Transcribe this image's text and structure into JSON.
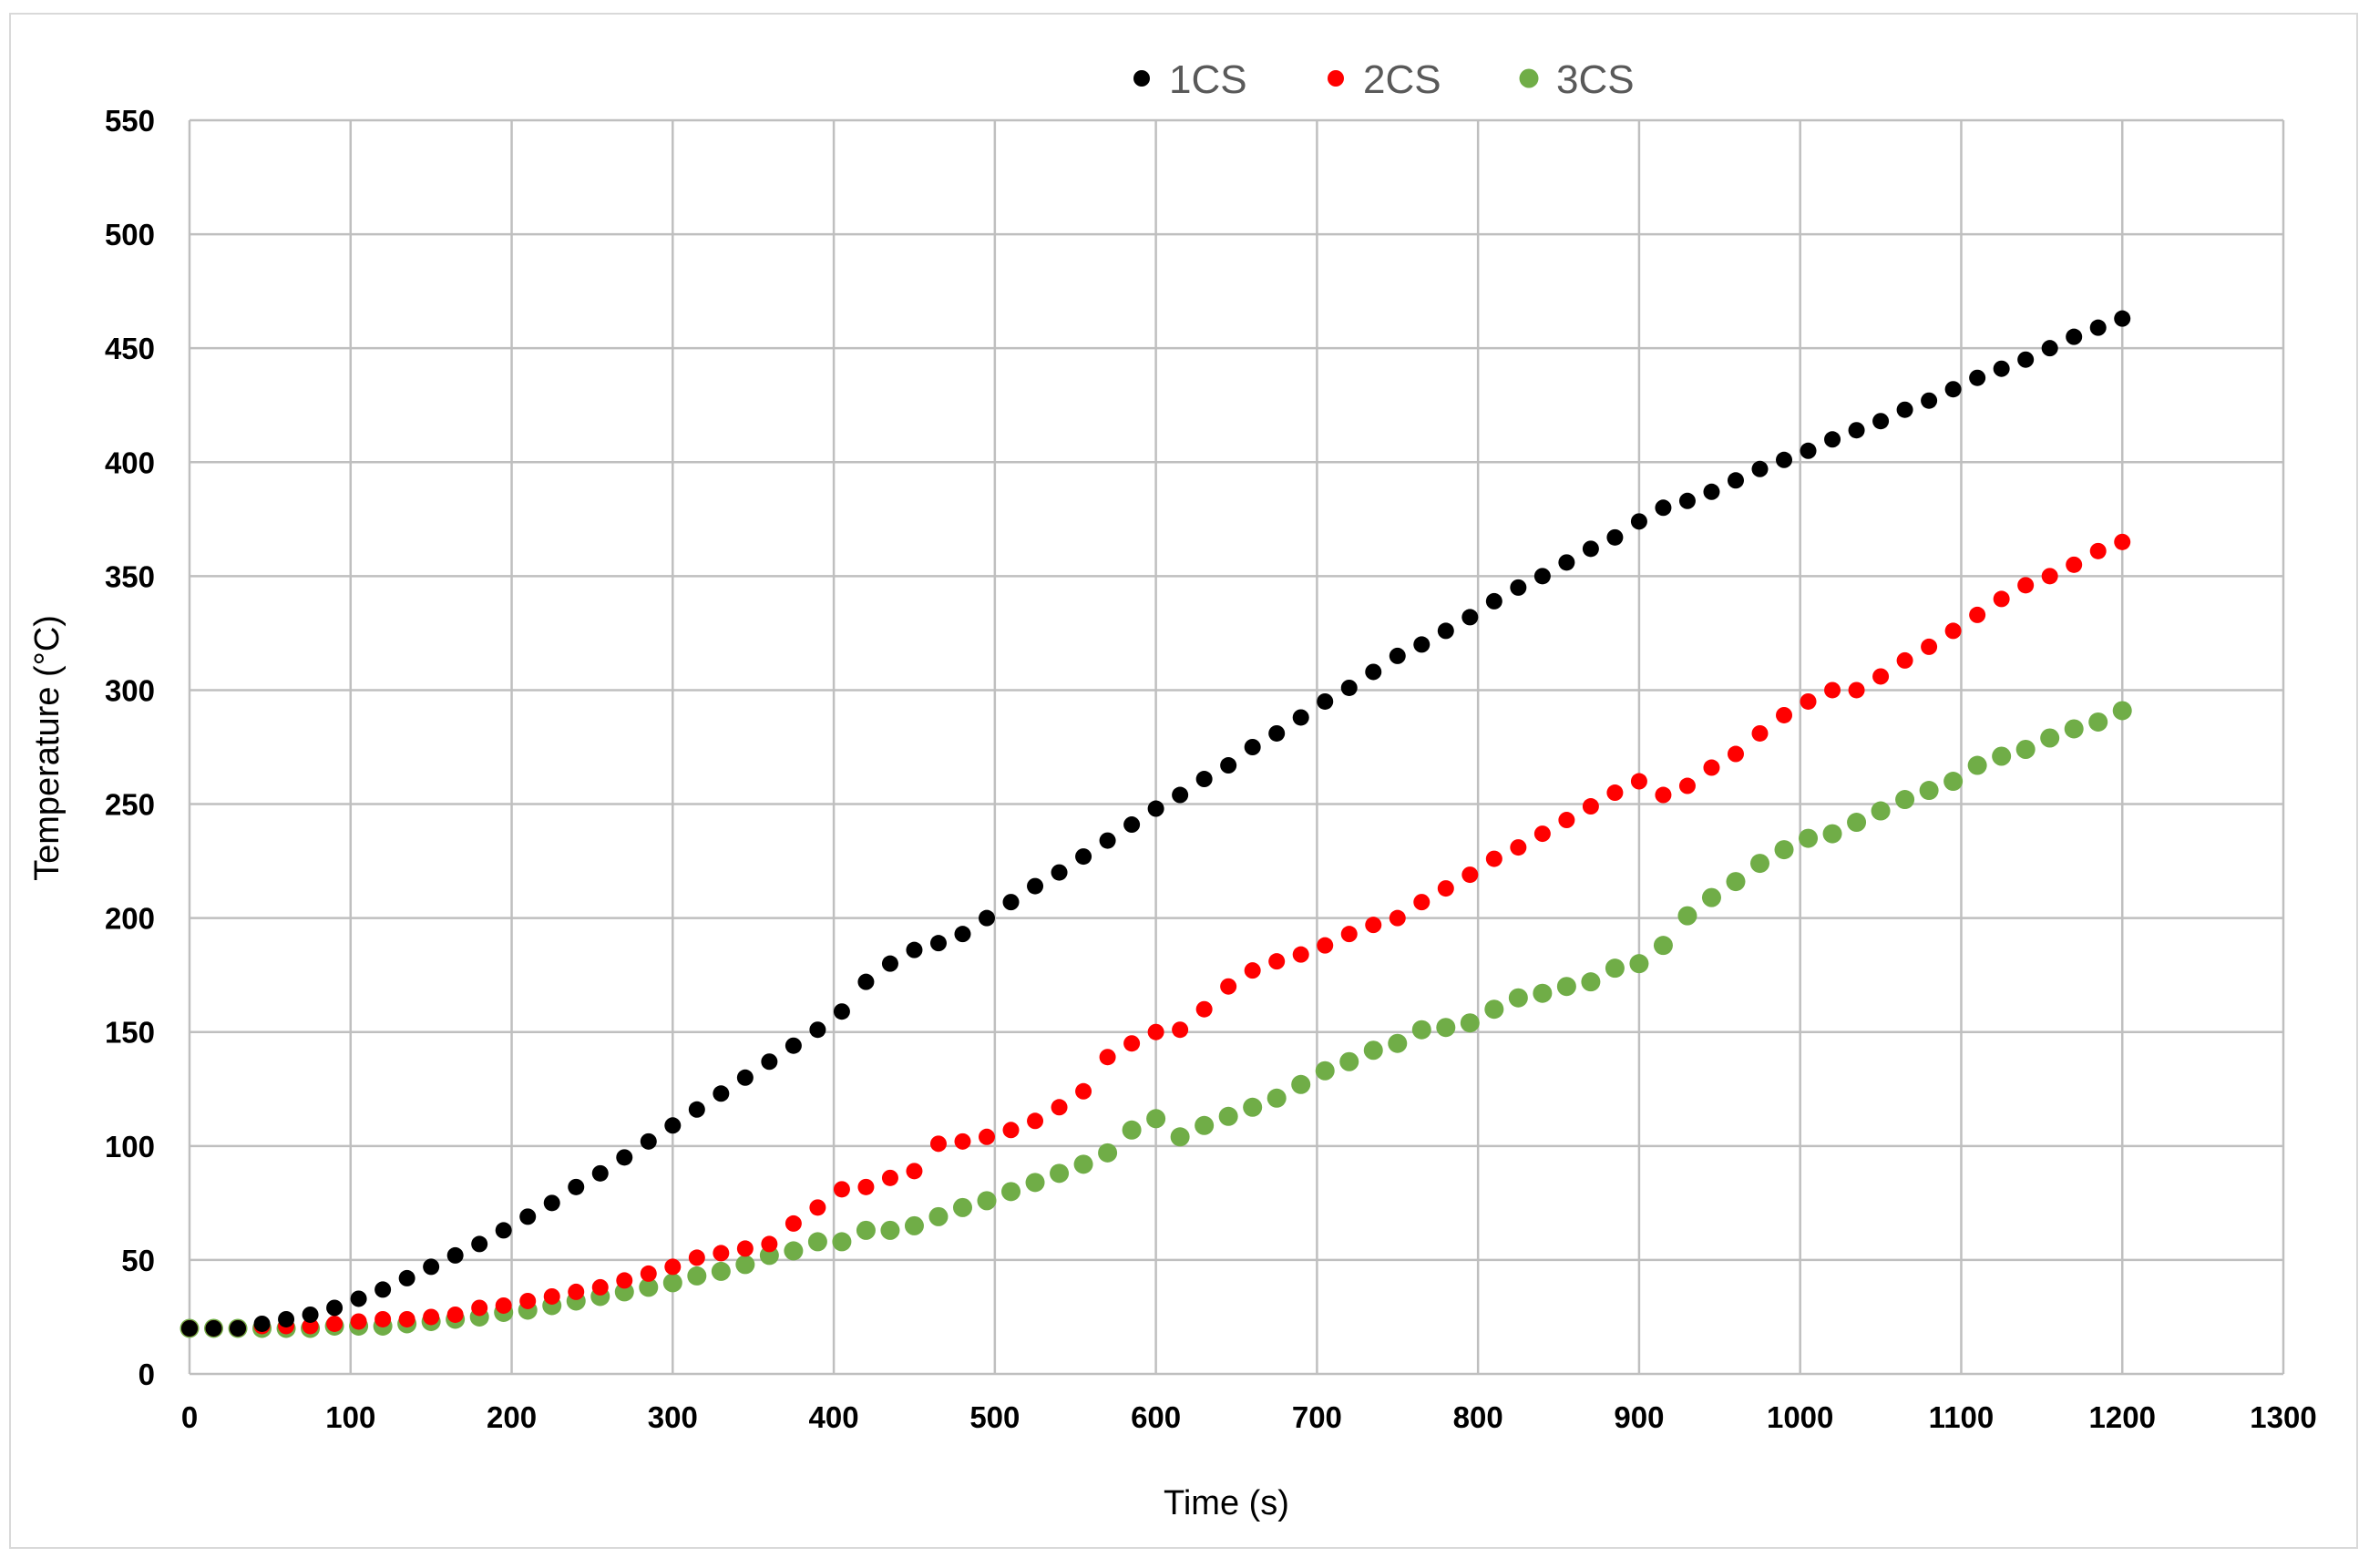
{
  "chart_data": {
    "type": "scatter",
    "title": "",
    "xlabel": "Time (s)",
    "ylabel": "Temperature (°C)",
    "xlim": [
      0,
      1300
    ],
    "ylim": [
      0,
      550
    ],
    "x_ticks": [
      "0",
      "100",
      "200",
      "300",
      "400",
      "500",
      "600",
      "700",
      "800",
      "900",
      "1000",
      "1100",
      "1200",
      "1300"
    ],
    "y_ticks": [
      "0",
      "50",
      "100",
      "150",
      "200",
      "250",
      "300",
      "350",
      "400",
      "450",
      "500",
      "550"
    ],
    "grid": true,
    "legend_position": "top",
    "series": [
      {
        "name": "1CS",
        "color": "#000000",
        "x": [
          0,
          15,
          30,
          45,
          60,
          75,
          90,
          105,
          120,
          135,
          150,
          165,
          180,
          195,
          210,
          225,
          240,
          255,
          270,
          285,
          300,
          315,
          330,
          345,
          360,
          375,
          390,
          405,
          420,
          435,
          450,
          465,
          480,
          495,
          510,
          525,
          540,
          555,
          570,
          585,
          600,
          615,
          630,
          645,
          660,
          675,
          690,
          705,
          720,
          735,
          750,
          765,
          780,
          795,
          810,
          825,
          840,
          855,
          870,
          885,
          900,
          915,
          930,
          945,
          960,
          975,
          990,
          1005,
          1020,
          1035,
          1050,
          1065,
          1080,
          1095,
          1110,
          1125,
          1140,
          1155,
          1170,
          1185,
          1200
        ],
        "y": [
          20,
          20,
          20,
          22,
          24,
          26,
          29,
          33,
          37,
          42,
          47,
          52,
          57,
          63,
          69,
          75,
          82,
          88,
          95,
          102,
          109,
          116,
          123,
          130,
          137,
          144,
          151,
          159,
          172,
          180,
          186,
          189,
          193,
          200,
          207,
          214,
          220,
          227,
          234,
          241,
          248,
          254,
          261,
          267,
          275,
          281,
          288,
          295,
          301,
          308,
          315,
          320,
          326,
          332,
          339,
          345,
          350,
          356,
          362,
          367,
          374,
          380,
          383,
          387,
          392,
          397,
          401,
          405,
          410,
          414,
          418,
          423,
          427,
          432,
          437,
          441,
          445,
          450,
          455,
          459,
          463
        ]
      },
      {
        "name": "2CS",
        "color": "#ff0000",
        "x": [
          0,
          15,
          30,
          45,
          60,
          75,
          90,
          105,
          120,
          135,
          150,
          165,
          180,
          195,
          210,
          225,
          240,
          255,
          270,
          285,
          300,
          315,
          330,
          345,
          360,
          375,
          390,
          405,
          420,
          435,
          450,
          465,
          480,
          495,
          510,
          525,
          540,
          555,
          570,
          585,
          600,
          615,
          630,
          645,
          660,
          675,
          690,
          705,
          720,
          735,
          750,
          765,
          780,
          795,
          810,
          825,
          840,
          855,
          870,
          885,
          900,
          915,
          930,
          945,
          960,
          975,
          990,
          1005,
          1020,
          1035,
          1050,
          1065,
          1080,
          1095,
          1110,
          1125,
          1140,
          1155,
          1170,
          1185,
          1200
        ],
        "y": [
          20,
          20,
          20,
          21,
          21,
          21,
          22,
          23,
          24,
          24,
          25,
          26,
          29,
          30,
          32,
          34,
          36,
          38,
          41,
          44,
          47,
          51,
          53,
          55,
          57,
          66,
          73,
          81,
          82,
          86,
          89,
          101,
          102,
          104,
          107,
          111,
          117,
          124,
          139,
          145,
          150,
          151,
          160,
          170,
          177,
          181,
          184,
          188,
          193,
          197,
          200,
          207,
          213,
          219,
          226,
          231,
          237,
          243,
          249,
          255,
          260,
          254,
          258,
          266,
          272,
          281,
          289,
          295,
          300,
          300,
          306,
          313,
          319,
          326,
          333,
          340,
          346,
          350,
          355,
          361,
          365
        ]
      },
      {
        "name": "3CS",
        "color": "#70ad47",
        "x": [
          0,
          15,
          30,
          45,
          60,
          75,
          90,
          105,
          120,
          135,
          150,
          165,
          180,
          195,
          210,
          225,
          240,
          255,
          270,
          285,
          300,
          315,
          330,
          345,
          360,
          375,
          390,
          405,
          420,
          435,
          450,
          465,
          480,
          495,
          510,
          525,
          540,
          555,
          570,
          585,
          600,
          615,
          630,
          645,
          660,
          675,
          690,
          705,
          720,
          735,
          750,
          765,
          780,
          795,
          810,
          825,
          840,
          855,
          870,
          885,
          900,
          915,
          930,
          945,
          960,
          975,
          990,
          1005,
          1020,
          1035,
          1050,
          1065,
          1080,
          1095,
          1110,
          1125,
          1140,
          1155,
          1170,
          1185,
          1200
        ],
        "y": [
          20,
          20,
          20,
          20,
          20,
          20,
          21,
          21,
          21,
          22,
          23,
          24,
          25,
          27,
          28,
          30,
          32,
          34,
          36,
          38,
          40,
          43,
          45,
          48,
          52,
          54,
          58,
          58,
          63,
          63,
          65,
          69,
          73,
          76,
          80,
          84,
          88,
          92,
          97,
          107,
          112,
          104,
          109,
          113,
          117,
          121,
          127,
          133,
          137,
          142,
          145,
          151,
          152,
          154,
          160,
          165,
          167,
          170,
          172,
          178,
          180,
          188,
          201,
          209,
          216,
          224,
          230,
          235,
          237,
          242,
          247,
          252,
          256,
          260,
          267,
          271,
          274,
          279,
          283,
          286,
          291
        ]
      }
    ]
  }
}
